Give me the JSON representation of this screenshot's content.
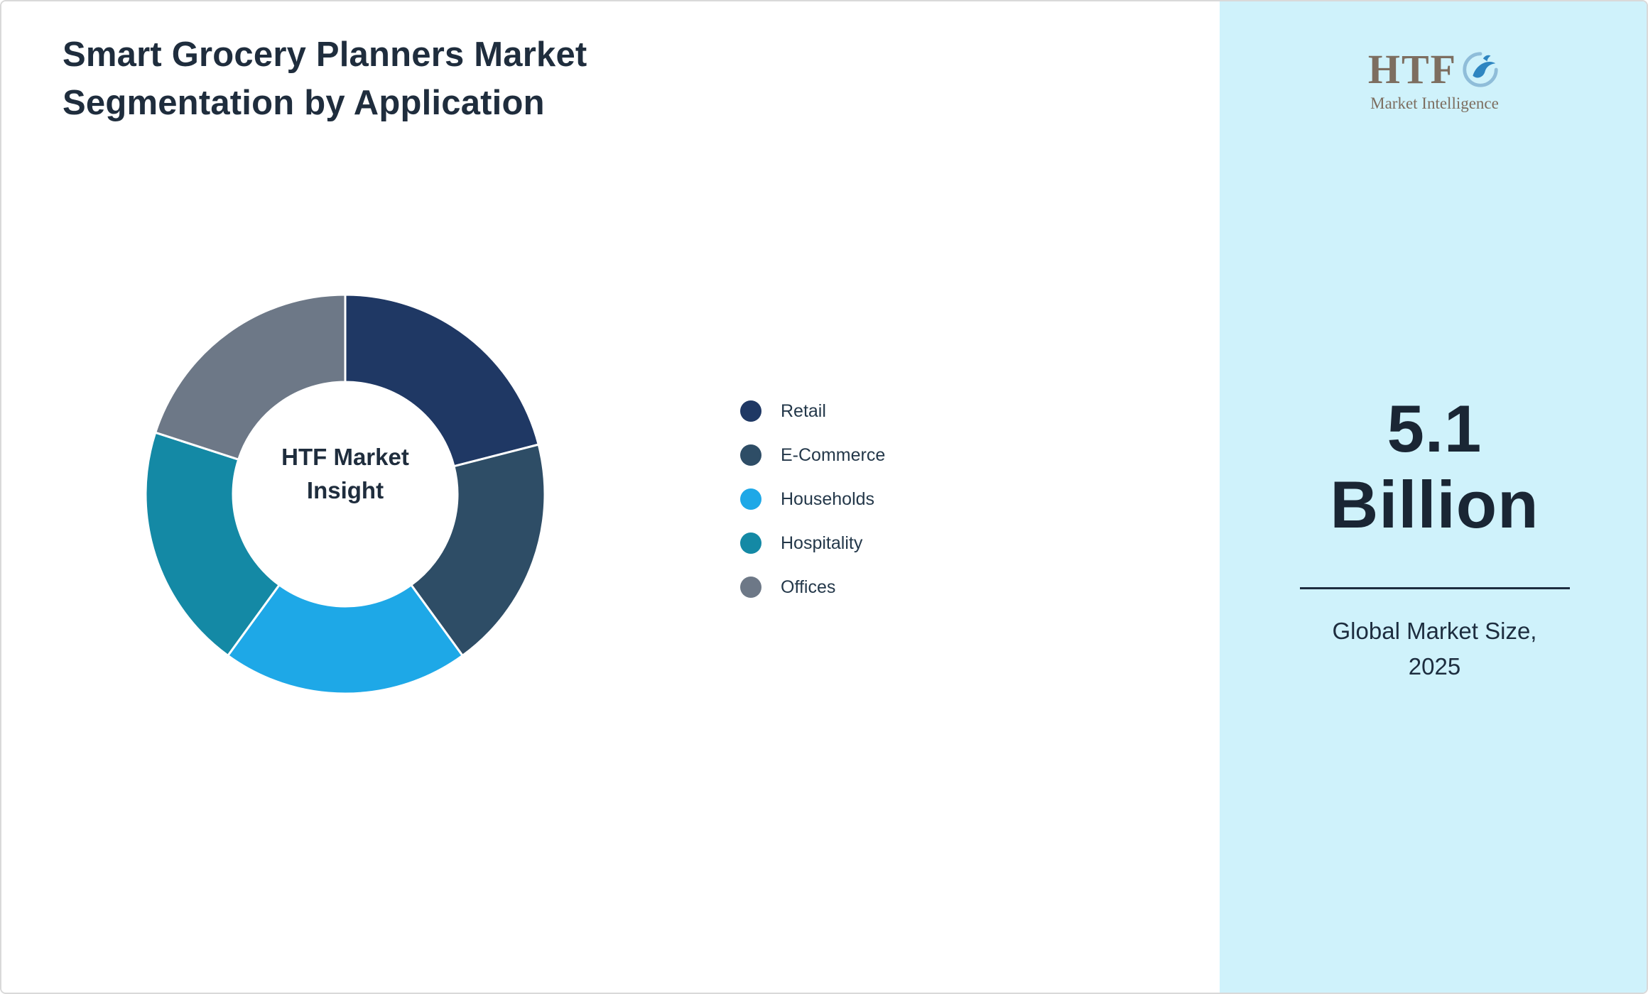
{
  "page": {
    "title_line1": "Smart Grocery Planners Market",
    "title_line2": "Segmentation by Application"
  },
  "chart_data": {
    "type": "pie",
    "donut": true,
    "title": "Smart Grocery Planners Market Segmentation by Application",
    "categories": [
      "Retail",
      "E-Commerce",
      "Households",
      "Hospitality",
      "Offices"
    ],
    "values": [
      21,
      19,
      20,
      20,
      20
    ],
    "colors": [
      "#1F3864",
      "#2E4D66",
      "#1EA8E7",
      "#1489A5",
      "#6D7887"
    ],
    "center_label_lines": [
      "HTF Market",
      "Insight"
    ],
    "legend_position": "right",
    "start_angle_deg": 0,
    "units": "percent"
  },
  "sidebar": {
    "background": "#CFF2FB",
    "logo_text": "HTF",
    "logo_subtext": "Market Intelligence",
    "market_size_line1": "5.1",
    "market_size_line2": "Billion",
    "caption_line1": "Global Market Size,",
    "caption_line2": "2025"
  }
}
